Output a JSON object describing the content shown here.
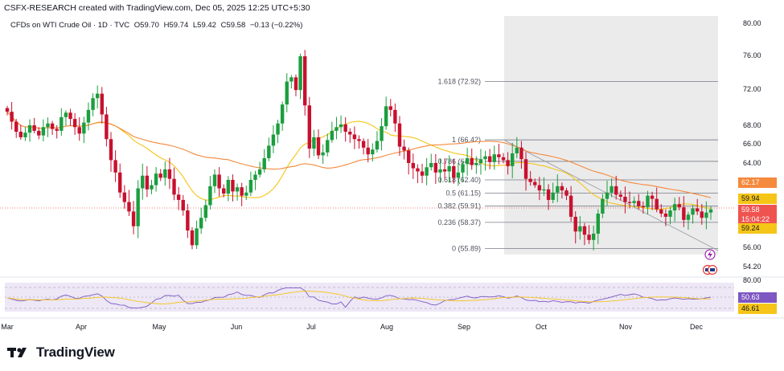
{
  "header": {
    "title": "CSFX-RESEARCH created with TradingView.com, Dec 05, 2025 12:25 UTC+5:30"
  },
  "symbol": {
    "name": "CFDs on WTI Crude Oil · 1D · TVC",
    "open": "O59.70",
    "high": "H59.74",
    "low": "L59.42",
    "close": "C59.58",
    "change": "−0.13 (−0.22%)"
  },
  "brand": {
    "name": "TradingView"
  },
  "colors": {
    "bull": "#26a69a",
    "bear": "#ef5350",
    "bull_candle": "#1b9e3e",
    "bear_candle": "#c8102e",
    "ma_fast": "#f5c518",
    "ma_slow": "#f5893c",
    "rsi": "#7e57c2",
    "rsi_ma": "#f5c518",
    "fib": "#787b86"
  },
  "price_tags": {
    "ma_slow": "62.17",
    "ma_fast_upper": "59.94",
    "last_price": "59.58",
    "countdown": "15:04:22",
    "ma_fast_lower": "59.24",
    "rsi": "50.63",
    "rsi_ma": "46.61"
  },
  "chart_data": {
    "type": "candlestick",
    "y_axis_ticks": [
      "80.00",
      "76.00",
      "72.00",
      "68.00",
      "66.00",
      "64.00",
      "56.00",
      "54.20"
    ],
    "y_range": [
      53.5,
      80.5
    ],
    "x_axis_labels": [
      "Mar",
      "Apr",
      "May",
      "Jun",
      "Jul",
      "Aug",
      "Sep",
      "Oct",
      "Nov",
      "Dec"
    ],
    "fibonacci": [
      {
        "label": "1.618 (72.92)",
        "value": 72.92
      },
      {
        "label": "1 (66.42)",
        "value": 66.42
      },
      {
        "label": "0.786 (64.17)",
        "value": 64.17
      },
      {
        "label": "0.618 (62.40)",
        "value": 62.4
      },
      {
        "label": "0.5 (61.15)",
        "value": 61.15
      },
      {
        "label": "0.382 (59.91)",
        "value": 59.91
      },
      {
        "label": "0.236 (58.37)",
        "value": 58.37
      },
      {
        "label": "0 (55.89)",
        "value": 55.89
      }
    ],
    "candles_close": [
      69.5,
      68.4,
      67.3,
      66.7,
      67.2,
      68.0,
      67.4,
      66.9,
      67.8,
      68.2,
      67.6,
      67.4,
      68.9,
      69.4,
      68.7,
      67.8,
      67.1,
      68.3,
      69.7,
      71.0,
      71.5,
      69.2,
      66.5,
      64.3,
      63.1,
      61.2,
      60.3,
      59.4,
      58.0,
      61.6,
      62.8,
      61.5,
      61.9,
      63.0,
      62.6,
      63.4,
      62.5,
      61.0,
      60.5,
      59.5,
      57.6,
      56.2,
      57.8,
      58.8,
      60.0,
      61.8,
      62.9,
      61.6,
      61.1,
      62.4,
      61.3,
      61.7,
      60.9,
      61.2,
      62.4,
      62.9,
      63.4,
      64.5,
      65.8,
      67.0,
      68.2,
      70.3,
      72.9,
      73.4,
      71.9,
      75.9,
      70.2,
      65.5,
      66.7,
      64.8,
      65.1,
      66.4,
      67.4,
      67.8,
      68.1,
      67.3,
      67.0,
      66.5,
      66.3,
      65.6,
      64.9,
      65.4,
      66.3,
      67.9,
      70.1,
      69.7,
      68.2,
      65.7,
      65.3,
      64.0,
      63.5,
      63.2,
      62.8,
      63.6,
      64.0,
      63.1,
      63.4,
      63.2,
      63.7,
      62.6,
      63.1,
      63.9,
      64.5,
      63.8,
      64.0,
      64.4,
      64.7,
      64.1,
      64.9,
      64.6,
      64.3,
      63.7,
      65.0,
      65.6,
      64.4,
      62.5,
      62.2,
      61.9,
      61.4,
      61.5,
      60.5,
      61.2,
      61.8,
      61.4,
      60.9,
      58.9,
      57.5,
      58.0,
      57.2,
      56.7,
      57.3,
      59.2,
      60.6,
      61.2,
      61.8,
      61.0,
      60.8,
      60.3,
      60.2,
      60.4,
      59.9,
      59.8,
      60.9,
      60.6,
      59.6,
      59.2,
      58.9,
      59.5,
      60.1,
      59.8,
      58.6,
      59.1,
      59.7,
      59.4,
      58.8,
      59.3,
      59.6
    ]
  }
}
